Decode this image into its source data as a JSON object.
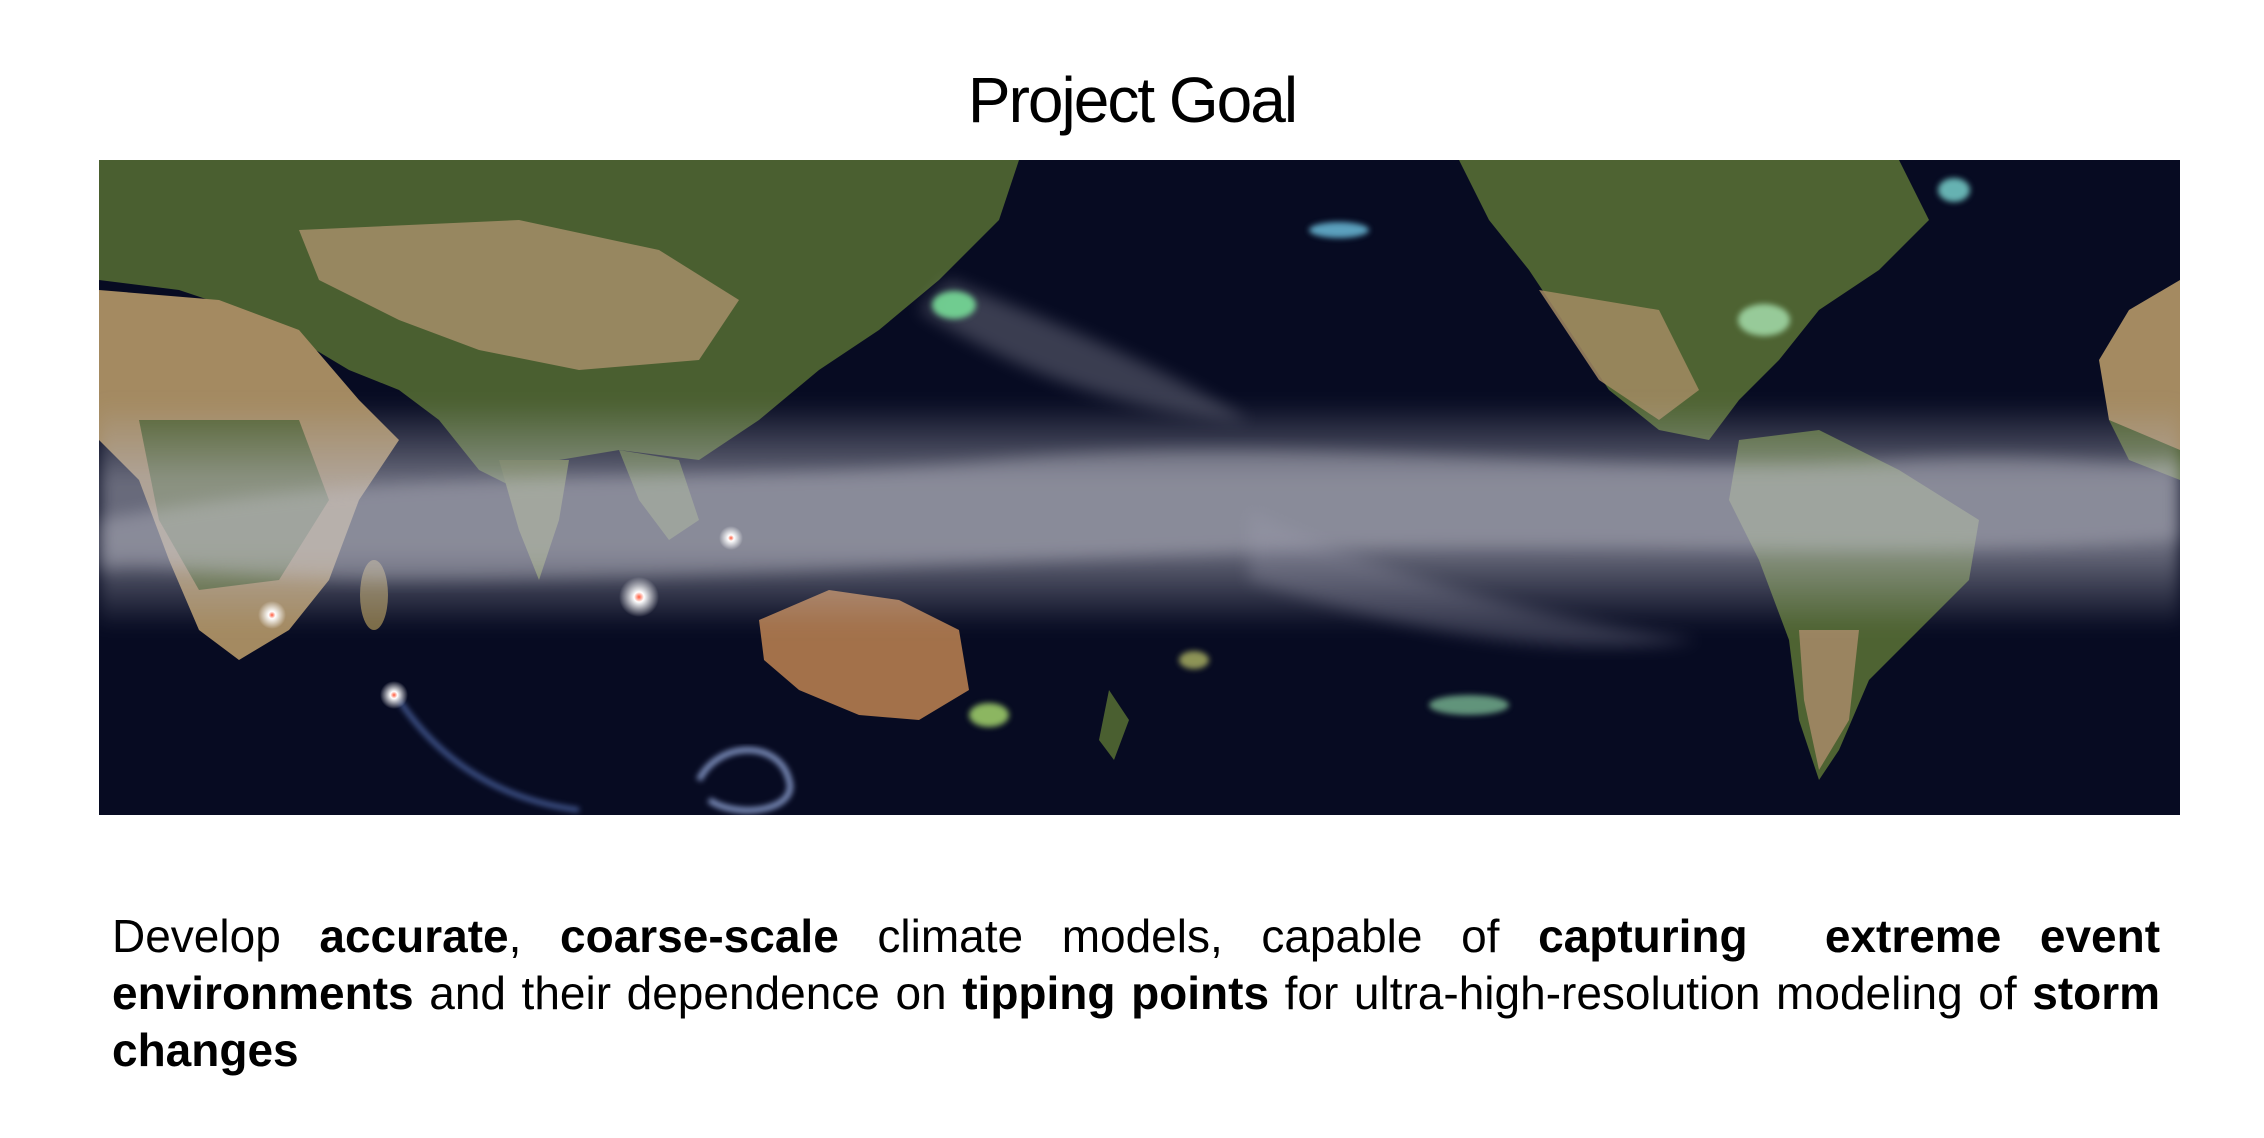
{
  "title": "Project Goal",
  "figure": {
    "description_icon": "earth-cloud-simulation-map-icon"
  },
  "goal": {
    "w1": "Develop",
    "accurate": "accurate",
    "comma1": ",",
    "coarse_scale": "coarse-scale",
    "w2": "climate models, capable of",
    "capturing": "capturing",
    "extreme_event": "extreme event",
    "environments": "environments",
    "w3": "and their dependence on",
    "tipping_points": "tipping points",
    "w4": "for ultra-high-resolution modeling of",
    "storm_changes": "storm changes"
  },
  "colors": {
    "ocean": "#060a1e",
    "land_green": "#3f5a2a",
    "land_desert": "#b59a72",
    "cloud": "#c9c9d2"
  }
}
